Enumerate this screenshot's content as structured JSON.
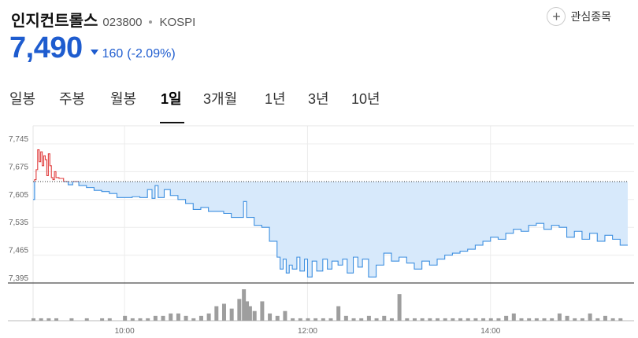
{
  "header": {
    "name": "인지컨트롤스",
    "code": "023800",
    "market": "KOSPI",
    "favorite_label": "관심종목",
    "favorite_icon": "plus-icon"
  },
  "quote": {
    "price": "7,490",
    "change": "160",
    "change_pct": "(-2.09%)",
    "direction_icon": "down-triangle-icon",
    "color": "#1e5ccf"
  },
  "tabs": [
    "일봉",
    "주봉",
    "월봉",
    "1일",
    "3개월",
    "1년",
    "3년",
    "10년"
  ],
  "active_tab": "1일",
  "chart_data": {
    "type": "area",
    "ylim": [
      7395,
      7745
    ],
    "yticks": [
      7395,
      7465,
      7535,
      7605,
      7675,
      7745
    ],
    "ytick_labels": [
      "7,395",
      "7,465",
      "7,535",
      "7,605",
      "7,675",
      "7,745"
    ],
    "xticks": [
      "10:00",
      "12:00",
      "14:00"
    ],
    "x_range": [
      "09:00",
      "15:30"
    ],
    "reference_price": 7650,
    "above_color": "#e03b3b",
    "below_color": "#3d8fe0",
    "fill_color": "#d7e9fb",
    "grid": true,
    "series": [
      {
        "points": [
          [
            "09:00",
            7605
          ],
          [
            "09:01",
            7655
          ],
          [
            "09:02",
            7680
          ],
          [
            "09:03",
            7730
          ],
          [
            "09:04",
            7700
          ],
          [
            "09:05",
            7725
          ],
          [
            "09:06",
            7690
          ],
          [
            "09:07",
            7715
          ],
          [
            "09:08",
            7705
          ],
          [
            "09:09",
            7665
          ],
          [
            "09:10",
            7720
          ],
          [
            "09:11",
            7690
          ],
          [
            "09:12",
            7660
          ],
          [
            "09:13",
            7655
          ],
          [
            "09:14",
            7675
          ],
          [
            "09:15",
            7660
          ],
          [
            "09:17",
            7658
          ],
          [
            "09:20",
            7650
          ],
          [
            "09:23",
            7642
          ],
          [
            "09:26",
            7650
          ],
          [
            "09:30",
            7640
          ],
          [
            "09:35",
            7635
          ],
          [
            "09:40",
            7628
          ],
          [
            "09:45",
            7625
          ],
          [
            "09:50",
            7620
          ],
          [
            "09:55",
            7610
          ],
          [
            "10:00",
            7610
          ],
          [
            "10:05",
            7612
          ],
          [
            "10:10",
            7610
          ],
          [
            "10:15",
            7630
          ],
          [
            "10:18",
            7608
          ],
          [
            "10:20",
            7640
          ],
          [
            "10:22",
            7610
          ],
          [
            "10:26",
            7630
          ],
          [
            "10:30",
            7615
          ],
          [
            "10:35",
            7605
          ],
          [
            "10:40",
            7595
          ],
          [
            "10:45",
            7580
          ],
          [
            "10:50",
            7585
          ],
          [
            "10:55",
            7575
          ],
          [
            "11:00",
            7575
          ],
          [
            "11:05",
            7570
          ],
          [
            "11:10",
            7560
          ],
          [
            "11:15",
            7560
          ],
          [
            "11:18",
            7600
          ],
          [
            "11:20",
            7560
          ],
          [
            "11:25",
            7540
          ],
          [
            "11:30",
            7535
          ],
          [
            "11:35",
            7500
          ],
          [
            "11:40",
            7460
          ],
          [
            "11:42",
            7430
          ],
          [
            "11:44",
            7455
          ],
          [
            "11:46",
            7420
          ],
          [
            "11:48",
            7440
          ],
          [
            "11:50",
            7430
          ],
          [
            "11:53",
            7460
          ],
          [
            "11:55",
            7425
          ],
          [
            "11:58",
            7455
          ],
          [
            "12:00",
            7410
          ],
          [
            "12:03",
            7450
          ],
          [
            "12:06",
            7425
          ],
          [
            "12:10",
            7455
          ],
          [
            "12:13",
            7430
          ],
          [
            "12:16",
            7450
          ],
          [
            "12:20",
            7440
          ],
          [
            "12:23",
            7455
          ],
          [
            "12:26",
            7420
          ],
          [
            "12:30",
            7460
          ],
          [
            "12:33",
            7435
          ],
          [
            "12:36",
            7455
          ],
          [
            "12:40",
            7410
          ],
          [
            "12:45",
            7440
          ],
          [
            "12:50",
            7470
          ],
          [
            "12:55",
            7450
          ],
          [
            "13:00",
            7460
          ],
          [
            "13:05",
            7445
          ],
          [
            "13:10",
            7430
          ],
          [
            "13:15",
            7450
          ],
          [
            "13:20",
            7440
          ],
          [
            "13:25",
            7455
          ],
          [
            "13:30",
            7465
          ],
          [
            "13:35",
            7470
          ],
          [
            "13:40",
            7475
          ],
          [
            "13:45",
            7480
          ],
          [
            "13:50",
            7490
          ],
          [
            "13:55",
            7500
          ],
          [
            "14:00",
            7510
          ],
          [
            "14:05",
            7505
          ],
          [
            "14:10",
            7520
          ],
          [
            "14:15",
            7530
          ],
          [
            "14:20",
            7525
          ],
          [
            "14:25",
            7540
          ],
          [
            "14:30",
            7545
          ],
          [
            "14:35",
            7530
          ],
          [
            "14:40",
            7540
          ],
          [
            "14:45",
            7535
          ],
          [
            "14:50",
            7510
          ],
          [
            "14:55",
            7525
          ],
          [
            "15:00",
            7505
          ],
          [
            "15:05",
            7520
          ],
          [
            "15:10",
            7500
          ],
          [
            "15:15",
            7515
          ],
          [
            "15:20",
            7505
          ],
          [
            "15:25",
            7490
          ],
          [
            "15:30",
            7490
          ]
        ]
      }
    ],
    "volume": [
      [
        "09:00",
        1
      ],
      [
        "09:05",
        1
      ],
      [
        "09:10",
        1
      ],
      [
        "09:15",
        1
      ],
      [
        "09:25",
        1
      ],
      [
        "09:35",
        1
      ],
      [
        "09:45",
        1
      ],
      [
        "09:50",
        1
      ],
      [
        "10:00",
        2
      ],
      [
        "10:05",
        1
      ],
      [
        "10:10",
        1
      ],
      [
        "10:15",
        1
      ],
      [
        "10:20",
        2
      ],
      [
        "10:25",
        2
      ],
      [
        "10:30",
        3
      ],
      [
        "10:35",
        3
      ],
      [
        "10:40",
        2
      ],
      [
        "10:45",
        1
      ],
      [
        "10:50",
        2
      ],
      [
        "10:55",
        3
      ],
      [
        "11:00",
        6
      ],
      [
        "11:05",
        7
      ],
      [
        "11:10",
        5
      ],
      [
        "11:15",
        9
      ],
      [
        "11:18",
        13
      ],
      [
        "11:20",
        8
      ],
      [
        "11:22",
        6
      ],
      [
        "11:25",
        4
      ],
      [
        "11:30",
        8
      ],
      [
        "11:35",
        3
      ],
      [
        "11:40",
        2
      ],
      [
        "11:45",
        4
      ],
      [
        "11:50",
        1
      ],
      [
        "11:55",
        1
      ],
      [
        "12:00",
        1
      ],
      [
        "12:05",
        1
      ],
      [
        "12:10",
        1
      ],
      [
        "12:15",
        1
      ],
      [
        "12:20",
        6
      ],
      [
        "12:25",
        2
      ],
      [
        "12:30",
        1
      ],
      [
        "12:35",
        1
      ],
      [
        "12:40",
        2
      ],
      [
        "12:45",
        1
      ],
      [
        "12:50",
        2
      ],
      [
        "12:55",
        1
      ],
      [
        "13:00",
        11
      ],
      [
        "13:05",
        1
      ],
      [
        "13:10",
        1
      ],
      [
        "13:15",
        1
      ],
      [
        "13:20",
        1
      ],
      [
        "13:25",
        1
      ],
      [
        "13:30",
        1
      ],
      [
        "13:35",
        1
      ],
      [
        "13:40",
        1
      ],
      [
        "13:45",
        1
      ],
      [
        "13:50",
        1
      ],
      [
        "13:55",
        1
      ],
      [
        "14:00",
        1
      ],
      [
        "14:05",
        1
      ],
      [
        "14:10",
        2
      ],
      [
        "14:15",
        3
      ],
      [
        "14:20",
        1
      ],
      [
        "14:25",
        1
      ],
      [
        "14:30",
        1
      ],
      [
        "14:35",
        1
      ],
      [
        "14:40",
        1
      ],
      [
        "14:45",
        3
      ],
      [
        "14:50",
        2
      ],
      [
        "14:55",
        1
      ],
      [
        "15:00",
        1
      ],
      [
        "15:05",
        3
      ],
      [
        "15:10",
        1
      ],
      [
        "15:15",
        2
      ],
      [
        "15:20",
        1
      ],
      [
        "15:25",
        1
      ]
    ]
  }
}
